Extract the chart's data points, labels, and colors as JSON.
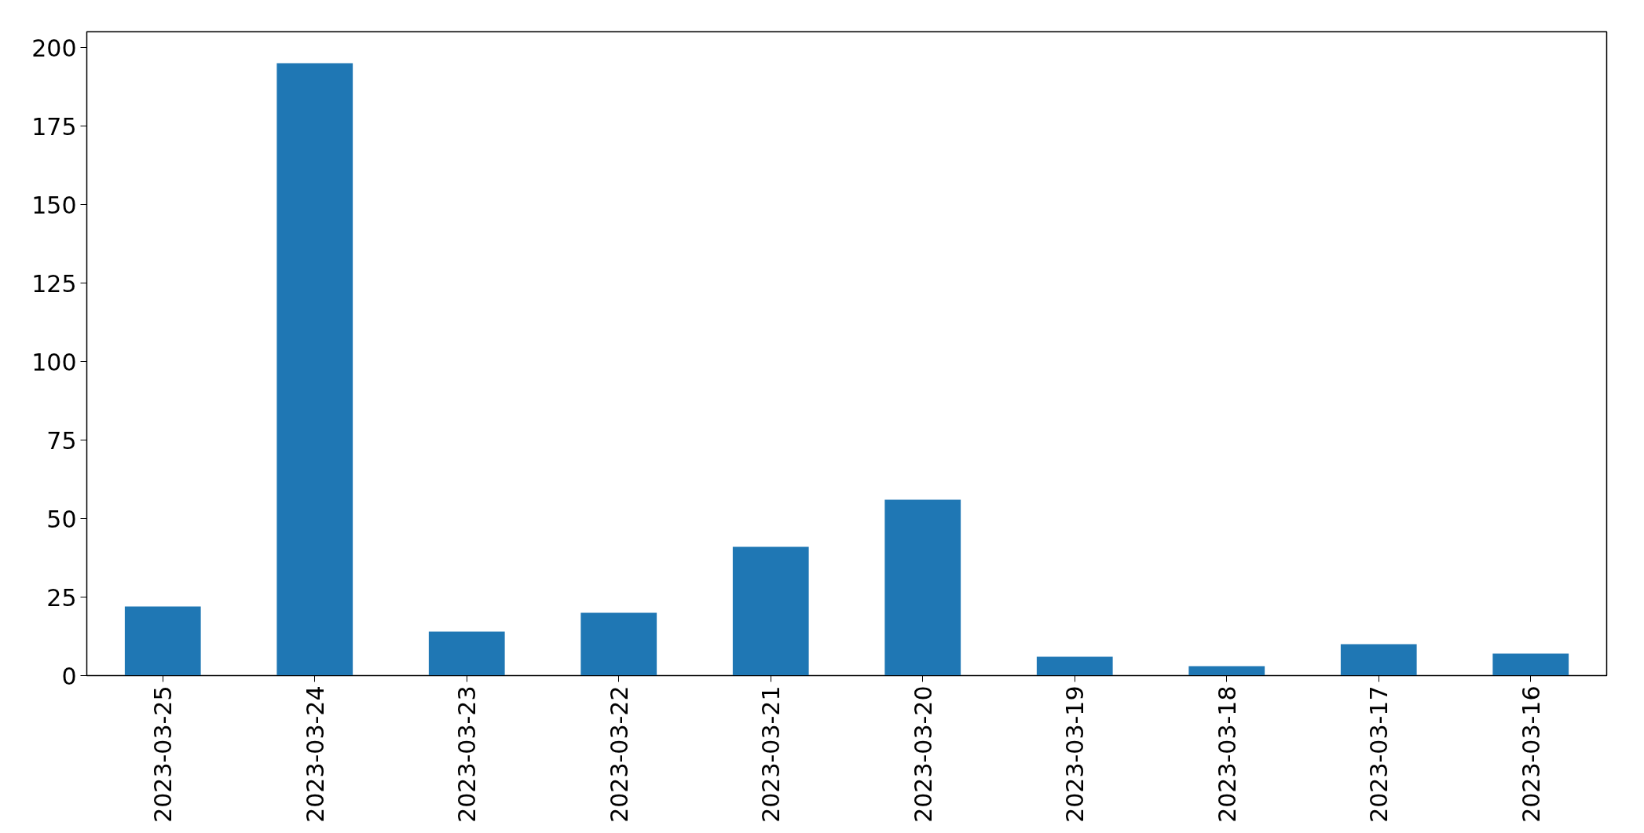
{
  "chart_data": {
    "type": "bar",
    "categories": [
      "2023-03-25",
      "2023-03-24",
      "2023-03-23",
      "2023-03-22",
      "2023-03-21",
      "2023-03-20",
      "2023-03-19",
      "2023-03-18",
      "2023-03-17",
      "2023-03-16"
    ],
    "values": [
      22,
      195,
      14,
      20,
      41,
      56,
      6,
      3,
      10,
      7
    ],
    "color": "#1f77b4",
    "ylim": [
      0,
      205
    ],
    "yticks": [
      0,
      25,
      50,
      75,
      100,
      125,
      150,
      175,
      200
    ],
    "grid": false
  }
}
